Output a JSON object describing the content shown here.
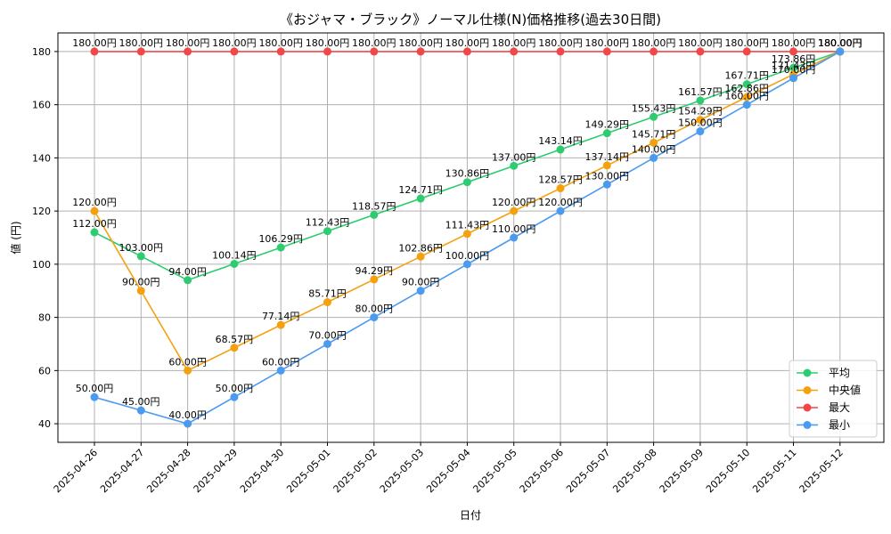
{
  "chart_data": {
    "type": "line",
    "title": "《おジャマ・ブラック》ノーマル仕様(N)価格推移(過去30日間)",
    "xlabel": "日付",
    "ylabel": "値 (円)",
    "ylim": [
      33,
      187
    ],
    "yticks": [
      40,
      60,
      80,
      100,
      120,
      140,
      160,
      180
    ],
    "grid": true,
    "legend_position": "bottom-right",
    "value_suffix": "円",
    "categories": [
      "2025-04-26",
      "2025-04-27",
      "2025-04-28",
      "2025-04-29",
      "2025-04-30",
      "2025-05-01",
      "2025-05-02",
      "2025-05-03",
      "2025-05-04",
      "2025-05-05",
      "2025-05-06",
      "2025-05-07",
      "2025-05-08",
      "2025-05-09",
      "2025-05-10",
      "2025-05-11",
      "2025-05-12"
    ],
    "series": [
      {
        "name": "平均",
        "color": "#2ecc71",
        "values": [
          112.0,
          103.0,
          94.0,
          100.14,
          106.29,
          112.43,
          118.57,
          124.71,
          130.86,
          137.0,
          143.14,
          149.29,
          155.43,
          161.57,
          167.71,
          173.86,
          180.0
        ]
      },
      {
        "name": "中央値",
        "color": "#f5a10f",
        "values": [
          120.0,
          90.0,
          60.0,
          68.57,
          77.14,
          85.71,
          94.29,
          102.86,
          111.43,
          120.0,
          128.57,
          137.14,
          145.71,
          154.29,
          162.86,
          171.43,
          180.0
        ]
      },
      {
        "name": "最大",
        "color": "#f04848",
        "values": [
          180.0,
          180.0,
          180.0,
          180.0,
          180.0,
          180.0,
          180.0,
          180.0,
          180.0,
          180.0,
          180.0,
          180.0,
          180.0,
          180.0,
          180.0,
          180.0,
          180.0
        ]
      },
      {
        "name": "最小",
        "color": "#4a9af0",
        "values": [
          50.0,
          45.0,
          40.0,
          50.0,
          60.0,
          70.0,
          80.0,
          90.0,
          100.0,
          110.0,
          120.0,
          130.0,
          140.0,
          150.0,
          160.0,
          170.0,
          180.0
        ]
      }
    ]
  }
}
